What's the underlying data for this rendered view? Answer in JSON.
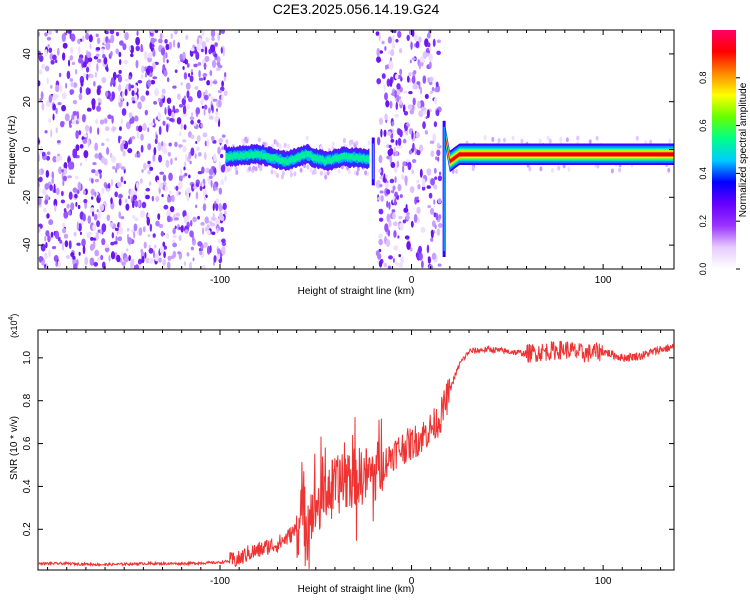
{
  "title": "C2E3.2025.056.14.19.G24",
  "chart_data": [
    {
      "type": "heatmap",
      "xlabel": "Height of straight line (km)",
      "ylabel": "Frequency (Hz)",
      "xlim": [
        -195,
        137
      ],
      "ylim": [
        -50,
        50
      ],
      "xticks": [
        -100,
        0,
        100
      ],
      "xtick_labels": [
        "-100",
        "0",
        "100"
      ],
      "yticks": [
        -40,
        -20,
        0,
        20,
        40
      ],
      "ytick_labels": [
        "-40",
        "-20",
        "0",
        "20",
        "40"
      ],
      "colorbar": {
        "label": "Normalized spectral amplitude",
        "range": [
          0,
          1
        ],
        "ticks": [
          0.0,
          0.2,
          0.4,
          0.6,
          0.8
        ],
        "tick_labels": [
          "0.0",
          "0.2",
          "0.4",
          "0.6",
          "0.8"
        ],
        "colors": [
          "#ffffff",
          "#e6ccff",
          "#9933ff",
          "#6600ff",
          "#0000ff",
          "#00ccff",
          "#00ff88",
          "#66ff00",
          "#ffff00",
          "#ff8800",
          "#ff0000",
          "#ff0066"
        ]
      },
      "regions": [
        {
          "name": "noise",
          "x": [
            -195,
            -97
          ]
        },
        {
          "name": "signal",
          "x": [
            -97,
            -22
          ],
          "freq": [
            [
              -97,
              -3
            ],
            [
              -80,
              -2
            ],
            [
              -65,
              -5
            ],
            [
              -55,
              -2
            ],
            [
              -45,
              -5
            ],
            [
              -35,
              -3
            ],
            [
              -22,
              -4
            ]
          ]
        },
        {
          "name": "noise",
          "x": [
            -18,
            15
          ]
        },
        {
          "name": "signal",
          "x": [
            17,
            137
          ],
          "freq": [
            [
              17,
              8
            ],
            [
              20,
              -5
            ],
            [
              25,
              -2
            ],
            [
              40,
              -2
            ],
            [
              137,
              -2
            ]
          ]
        }
      ]
    },
    {
      "type": "line",
      "xlabel": "Height of straight line (km)",
      "ylabel": "SNR (10 * v/v)",
      "yscale_label": "(x10",
      "yscale_exp": "4",
      "xlim": [
        -195,
        137
      ],
      "ylim": [
        0.01,
        1.13
      ],
      "xticks": [
        -100,
        0,
        100
      ],
      "xtick_labels": [
        "-100",
        "0",
        "100"
      ],
      "yticks": [
        0.2,
        0.4,
        0.6,
        0.8,
        1.0
      ],
      "ytick_labels": [
        "0.2",
        "0.4",
        "0.6",
        "0.8",
        "1.0"
      ],
      "color": "#ee3333",
      "series": [
        {
          "x": [
            -195,
            -180,
            -160,
            -140,
            -120,
            -100,
            -90,
            -85,
            -80,
            -75,
            -70,
            -65,
            -60,
            -55,
            -50,
            -45,
            -40,
            -35,
            -30,
            -25,
            -20,
            -15,
            -10,
            -5,
            0,
            5,
            10,
            15,
            20,
            25,
            30,
            40,
            50,
            60,
            70,
            80,
            90,
            100,
            110,
            120,
            130,
            137
          ],
          "y": [
            0.04,
            0.04,
            0.035,
            0.04,
            0.04,
            0.045,
            0.06,
            0.09,
            0.1,
            0.12,
            0.13,
            0.16,
            0.2,
            0.27,
            0.3,
            0.38,
            0.4,
            0.42,
            0.44,
            0.45,
            0.46,
            0.5,
            0.55,
            0.58,
            0.6,
            0.63,
            0.67,
            0.72,
            0.85,
            0.97,
            1.03,
            1.04,
            1.03,
            1.02,
            1.03,
            1.04,
            1.02,
            1.03,
            1.0,
            1.01,
            1.04,
            1.05
          ]
        }
      ]
    }
  ]
}
